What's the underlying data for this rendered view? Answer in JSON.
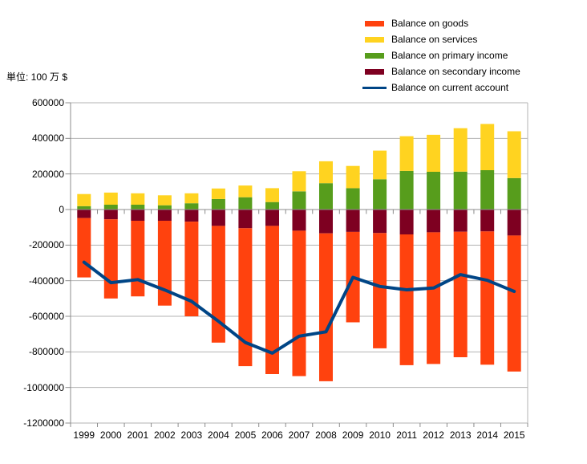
{
  "unit_label": "単位: 100 万 $",
  "colors": {
    "goods": "#FF420E",
    "services": "#FFD320",
    "primary_income": "#579D1C",
    "secondary_income": "#7E0021",
    "current_account": "#004586",
    "gridline": "#B3B3B3",
    "axis": "#8C8C8C",
    "text": "#000000",
    "background": "#FFFFFF"
  },
  "legend": {
    "position": "top-right",
    "items": [
      {
        "label": "Balance on goods",
        "color": "#FF420E",
        "swatch": "rect"
      },
      {
        "label": "Balance on services",
        "color": "#FFD320",
        "swatch": "rect"
      },
      {
        "label": "Balance on primary income",
        "color": "#579D1C",
        "swatch": "rect"
      },
      {
        "label": "Balance on secondary income",
        "color": "#7E0021",
        "swatch": "rect"
      },
      {
        "label": "Balance on current account",
        "color": "#004586",
        "swatch": "line"
      }
    ]
  },
  "chart_data": {
    "type": "bar",
    "subtype": "stacked-bar-with-line",
    "title": "",
    "xlabel": "",
    "ylabel": "単位: 100 万 $",
    "grid": true,
    "legend_position": "top-right",
    "ylim": [
      -1200000,
      600000
    ],
    "ytick_step": 200000,
    "y_ticks": [
      600000,
      400000,
      200000,
      0,
      -200000,
      -400000,
      -600000,
      -800000,
      -1000000,
      -1200000
    ],
    "categories": [
      "1999",
      "2000",
      "2001",
      "2002",
      "2003",
      "2004",
      "2005",
      "2006",
      "2007",
      "2008",
      "2009",
      "2010",
      "2011",
      "2012",
      "2013",
      "2014",
      "2015"
    ],
    "series": [
      {
        "name": "Balance on goods",
        "type": "bar",
        "color": "#FF420E",
        "values": [
          -334000,
          -445000,
          -425000,
          -477000,
          -532000,
          -656000,
          -775000,
          -833000,
          -817000,
          -831000,
          -508000,
          -648000,
          -735000,
          -740000,
          -705000,
          -749000,
          -764000
        ]
      },
      {
        "name": "Balance on services",
        "type": "bar",
        "color": "#FFD320",
        "values": [
          68000,
          68000,
          64000,
          56000,
          56000,
          59000,
          66000,
          78000,
          113000,
          123000,
          125000,
          161000,
          195000,
          208000,
          244000,
          260000,
          263000
        ]
      },
      {
        "name": "Balance on primary income",
        "type": "bar",
        "color": "#579D1C",
        "values": [
          19000,
          27000,
          27000,
          24000,
          35000,
          59000,
          69000,
          42000,
          102000,
          148000,
          120000,
          170000,
          217000,
          212000,
          213000,
          221000,
          177000
        ]
      },
      {
        "name": "Balance on secondary income",
        "type": "bar",
        "color": "#7E0021",
        "values": [
          -48000,
          -55000,
          -63000,
          -63000,
          -68000,
          -92000,
          -105000,
          -92000,
          -119000,
          -134000,
          -126000,
          -132000,
          -140000,
          -128000,
          -125000,
          -123000,
          -146000
        ]
      },
      {
        "name": "Balance on current account",
        "type": "line",
        "color": "#004586",
        "values": [
          -296000,
          -411000,
          -394000,
          -452000,
          -516000,
          -628000,
          -747000,
          -807000,
          -712000,
          -687000,
          -381000,
          -432000,
          -451000,
          -441000,
          -366000,
          -398000,
          -460000
        ]
      }
    ]
  }
}
